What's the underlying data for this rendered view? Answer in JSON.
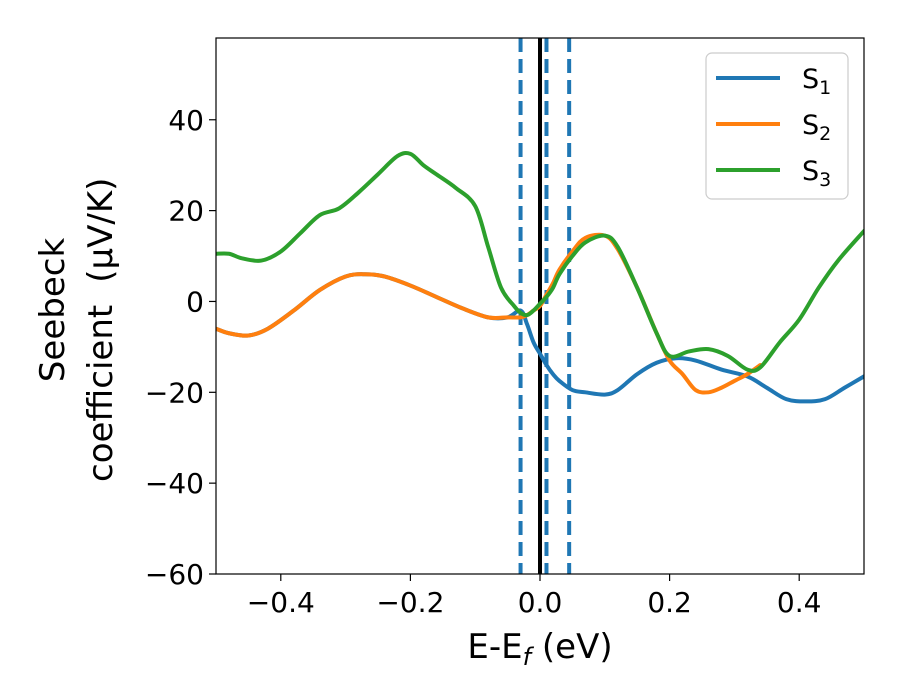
{
  "chart_data": {
    "type": "line",
    "xlabel": {
      "main": "E-E",
      "sub": "f",
      "unit": " (eV)"
    },
    "ylabel": {
      "line1": "Seebeck",
      "line2": "coefficient",
      "unit": "(μV/K)"
    },
    "xlim": [
      -0.5,
      0.5
    ],
    "ylim": [
      -60,
      58
    ],
    "xticks": [
      -0.4,
      -0.2,
      0.0,
      0.2,
      0.4
    ],
    "xtick_labels": [
      "−0.4",
      "−0.2",
      "0.0",
      "0.2",
      "0.4"
    ],
    "yticks": [
      -60,
      -40,
      -20,
      0,
      20,
      40
    ],
    "ytick_labels": [
      "−60",
      "−40",
      "−20",
      "0",
      "20",
      "40"
    ],
    "grid": false,
    "legend_position": "top-right",
    "series": [
      {
        "name": "S",
        "sub": "1",
        "color": "#1f77b4",
        "x": [
          -0.5,
          -0.48,
          -0.45,
          -0.42,
          -0.38,
          -0.34,
          -0.3,
          -0.27,
          -0.24,
          -0.2,
          -0.16,
          -0.12,
          -0.08,
          -0.05,
          -0.03,
          -0.02,
          -0.01,
          0.0,
          0.01,
          0.02,
          0.03,
          0.05,
          0.07,
          0.1,
          0.12,
          0.15,
          0.18,
          0.21,
          0.24,
          0.28,
          0.32,
          0.35,
          0.38,
          0.41,
          0.44,
          0.47,
          0.5
        ],
        "y": [
          -6,
          -7,
          -7.5,
          -6,
          -2,
          2.5,
          5.5,
          6,
          5.5,
          3.5,
          1,
          -1.5,
          -3.5,
          -3.5,
          -2,
          -5,
          -9,
          -11.5,
          -14,
          -16,
          -17.5,
          -19.5,
          -20,
          -20.5,
          -19.5,
          -16,
          -13.5,
          -12.5,
          -13,
          -15,
          -16.5,
          -19,
          -21.5,
          -22,
          -21.5,
          -19,
          -16.5
        ]
      },
      {
        "name": "S",
        "sub": "2",
        "color": "#ff7f0e",
        "x": [
          -0.5,
          -0.48,
          -0.45,
          -0.42,
          -0.38,
          -0.34,
          -0.3,
          -0.27,
          -0.24,
          -0.2,
          -0.16,
          -0.12,
          -0.08,
          -0.05,
          -0.03,
          -0.02,
          -0.01,
          0.0,
          0.01,
          0.02,
          0.03,
          0.05,
          0.07,
          0.1,
          0.12,
          0.15,
          0.18,
          0.2,
          0.22,
          0.24,
          0.26,
          0.28,
          0.3,
          0.32,
          0.34
        ],
        "y": [
          -6,
          -7,
          -7.5,
          -6,
          -2,
          2.5,
          5.5,
          6,
          5.5,
          3.5,
          1,
          -1.5,
          -3.5,
          -3.5,
          -3.5,
          -3,
          -2,
          -1,
          1.5,
          4,
          7,
          11,
          14,
          14.5,
          11.5,
          3,
          -7,
          -13,
          -16,
          -19.5,
          -20,
          -19,
          -17.5,
          -16,
          -14
        ]
      },
      {
        "name": "S",
        "sub": "3",
        "color": "#2ca02c",
        "x": [
          -0.5,
          -0.48,
          -0.46,
          -0.43,
          -0.4,
          -0.37,
          -0.34,
          -0.31,
          -0.28,
          -0.25,
          -0.22,
          -0.2,
          -0.18,
          -0.16,
          -0.13,
          -0.1,
          -0.08,
          -0.06,
          -0.04,
          -0.03,
          -0.02,
          -0.01,
          0.0,
          0.01,
          0.02,
          0.03,
          0.05,
          0.07,
          0.1,
          0.12,
          0.15,
          0.18,
          0.2,
          0.23,
          0.26,
          0.29,
          0.32,
          0.34,
          0.37,
          0.4,
          0.43,
          0.46,
          0.5
        ],
        "y": [
          10.5,
          10.5,
          9.5,
          9,
          11,
          15,
          19,
          20.5,
          24,
          28,
          32,
          32.5,
          30,
          28,
          25,
          21,
          12,
          3,
          -1,
          -2.5,
          -3,
          -2,
          -0.5,
          1,
          3,
          6,
          10,
          13,
          14.5,
          12,
          3,
          -7,
          -12,
          -11,
          -10.5,
          -12,
          -15,
          -14.5,
          -9,
          -4,
          3,
          9,
          15.5
        ]
      }
    ],
    "vlines": [
      {
        "x": -0.03,
        "style": "dashed",
        "color": "#1f77b4"
      },
      {
        "x": 0.01,
        "style": "dashed",
        "color": "#1f77b4"
      },
      {
        "x": 0.045,
        "style": "dashed",
        "color": "#1f77b4"
      },
      {
        "x": 0.0,
        "style": "solid",
        "color": "#000000"
      }
    ]
  }
}
